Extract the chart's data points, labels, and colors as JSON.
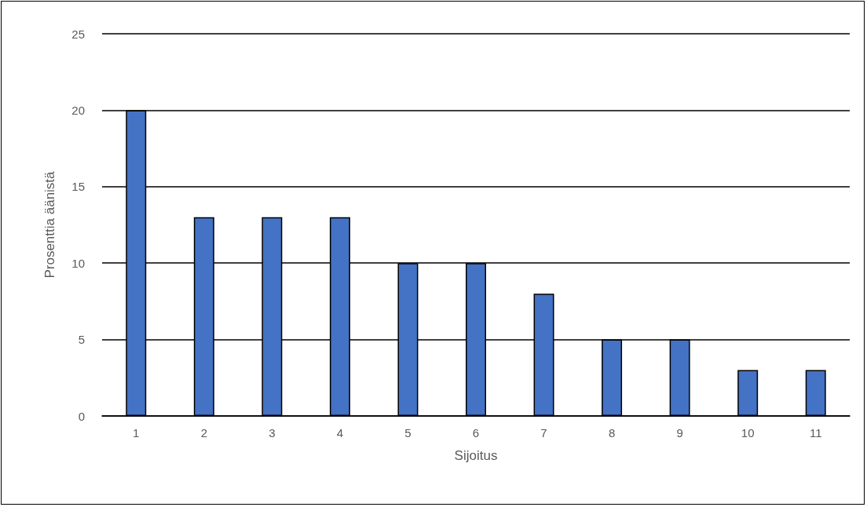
{
  "chart_data": {
    "type": "bar",
    "xlabel": "Sijoitus",
    "ylabel": "Prosenttia äänistä",
    "categories": [
      "1",
      "2",
      "3",
      "4",
      "5",
      "6",
      "7",
      "8",
      "9",
      "10",
      "11"
    ],
    "values": [
      20,
      13,
      13,
      13,
      10,
      10,
      8,
      5,
      5,
      3,
      3
    ],
    "color": "#4472c4",
    "ylim": [
      0,
      25
    ],
    "yticks": [
      0,
      5,
      10,
      15,
      20,
      25
    ],
    "grid": "y"
  }
}
